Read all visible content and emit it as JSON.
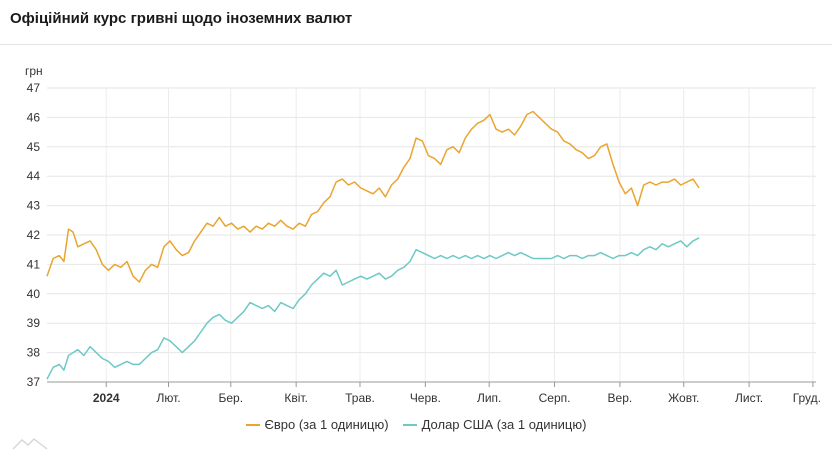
{
  "title": "Офіційний курс гривні щодо іноземних валют",
  "chart_data": {
    "type": "line",
    "title": "Офіційний курс гривні щодо іноземних валют",
    "ylabel": "грн",
    "xlabel": "",
    "ylim": [
      37,
      47
    ],
    "yticks": [
      37,
      38,
      39,
      40,
      41,
      42,
      43,
      44,
      45,
      46,
      47
    ],
    "grid": true,
    "legend": "bottom",
    "x_ticks": [
      {
        "label": "2024",
        "bold": true,
        "pos": 0.077
      },
      {
        "label": "Лют.",
        "bold": false,
        "pos": 0.158
      },
      {
        "label": "Бер.",
        "bold": false,
        "pos": 0.239
      },
      {
        "label": "Квіт.",
        "bold": false,
        "pos": 0.324
      },
      {
        "label": "Трав.",
        "bold": false,
        "pos": 0.407
      },
      {
        "label": "Черв.",
        "bold": false,
        "pos": 0.492
      },
      {
        "label": "Лип.",
        "bold": false,
        "pos": 0.575
      },
      {
        "label": "Серп.",
        "bold": false,
        "pos": 0.66
      },
      {
        "label": "Вер.",
        "bold": false,
        "pos": 0.745
      },
      {
        "label": "Жовт.",
        "bold": false,
        "pos": 0.828
      },
      {
        "label": "Лист.",
        "bold": false,
        "pos": 0.913
      },
      {
        "label": "Груд.",
        "bold": false,
        "pos": 0.996
      }
    ],
    "series": [
      {
        "name": "Євро (за 1 одиницю)",
        "color": "#e9a530",
        "points": [
          [
            0.0,
            40.6
          ],
          [
            0.008,
            41.2
          ],
          [
            0.016,
            41.3
          ],
          [
            0.022,
            41.1
          ],
          [
            0.028,
            42.2
          ],
          [
            0.034,
            42.1
          ],
          [
            0.04,
            41.6
          ],
          [
            0.048,
            41.7
          ],
          [
            0.056,
            41.8
          ],
          [
            0.064,
            41.5
          ],
          [
            0.072,
            41.0
          ],
          [
            0.08,
            40.8
          ],
          [
            0.088,
            41.0
          ],
          [
            0.096,
            40.9
          ],
          [
            0.104,
            41.1
          ],
          [
            0.112,
            40.6
          ],
          [
            0.12,
            40.4
          ],
          [
            0.128,
            40.8
          ],
          [
            0.136,
            41.0
          ],
          [
            0.144,
            40.9
          ],
          [
            0.152,
            41.6
          ],
          [
            0.16,
            41.8
          ],
          [
            0.168,
            41.5
          ],
          [
            0.176,
            41.3
          ],
          [
            0.184,
            41.4
          ],
          [
            0.192,
            41.8
          ],
          [
            0.2,
            42.1
          ],
          [
            0.208,
            42.4
          ],
          [
            0.216,
            42.3
          ],
          [
            0.224,
            42.6
          ],
          [
            0.232,
            42.3
          ],
          [
            0.24,
            42.4
          ],
          [
            0.248,
            42.2
          ],
          [
            0.256,
            42.3
          ],
          [
            0.264,
            42.1
          ],
          [
            0.272,
            42.3
          ],
          [
            0.28,
            42.2
          ],
          [
            0.288,
            42.4
          ],
          [
            0.296,
            42.3
          ],
          [
            0.304,
            42.5
          ],
          [
            0.312,
            42.3
          ],
          [
            0.32,
            42.2
          ],
          [
            0.328,
            42.4
          ],
          [
            0.336,
            42.3
          ],
          [
            0.344,
            42.7
          ],
          [
            0.352,
            42.8
          ],
          [
            0.36,
            43.1
          ],
          [
            0.368,
            43.3
          ],
          [
            0.376,
            43.8
          ],
          [
            0.384,
            43.9
          ],
          [
            0.392,
            43.7
          ],
          [
            0.4,
            43.8
          ],
          [
            0.408,
            43.6
          ],
          [
            0.416,
            43.5
          ],
          [
            0.424,
            43.4
          ],
          [
            0.432,
            43.6
          ],
          [
            0.44,
            43.3
          ],
          [
            0.448,
            43.7
          ],
          [
            0.456,
            43.9
          ],
          [
            0.464,
            44.3
          ],
          [
            0.472,
            44.6
          ],
          [
            0.48,
            45.3
          ],
          [
            0.488,
            45.2
          ],
          [
            0.496,
            44.7
          ],
          [
            0.504,
            44.6
          ],
          [
            0.512,
            44.4
          ],
          [
            0.52,
            44.9
          ],
          [
            0.528,
            45.0
          ],
          [
            0.536,
            44.8
          ],
          [
            0.544,
            45.3
          ],
          [
            0.552,
            45.6
          ],
          [
            0.56,
            45.8
          ],
          [
            0.568,
            45.9
          ],
          [
            0.576,
            46.1
          ],
          [
            0.584,
            45.6
          ],
          [
            0.592,
            45.5
          ],
          [
            0.6,
            45.6
          ],
          [
            0.608,
            45.4
          ],
          [
            0.616,
            45.7
          ],
          [
            0.624,
            46.1
          ],
          [
            0.632,
            46.2
          ],
          [
            0.64,
            46.0
          ],
          [
            0.648,
            45.8
          ],
          [
            0.656,
            45.6
          ],
          [
            0.664,
            45.5
          ],
          [
            0.672,
            45.2
          ],
          [
            0.68,
            45.1
          ],
          [
            0.688,
            44.9
          ],
          [
            0.696,
            44.8
          ],
          [
            0.704,
            44.6
          ],
          [
            0.712,
            44.7
          ],
          [
            0.72,
            45.0
          ],
          [
            0.728,
            45.1
          ],
          [
            0.736,
            44.4
          ],
          [
            0.744,
            43.8
          ],
          [
            0.752,
            43.4
          ],
          [
            0.76,
            43.6
          ],
          [
            0.768,
            43.0
          ],
          [
            0.776,
            43.7
          ],
          [
            0.784,
            43.8
          ],
          [
            0.792,
            43.7
          ],
          [
            0.8,
            43.8
          ],
          [
            0.808,
            43.8
          ],
          [
            0.816,
            43.9
          ],
          [
            0.824,
            43.7
          ],
          [
            0.832,
            43.8
          ],
          [
            0.84,
            43.9
          ],
          [
            0.848,
            43.6
          ]
        ]
      },
      {
        "name": "Долар США (за 1 одиницю)",
        "color": "#6cc9c6",
        "points": [
          [
            0.0,
            37.1
          ],
          [
            0.008,
            37.5
          ],
          [
            0.016,
            37.6
          ],
          [
            0.022,
            37.4
          ],
          [
            0.028,
            37.9
          ],
          [
            0.034,
            38.0
          ],
          [
            0.04,
            38.1
          ],
          [
            0.048,
            37.9
          ],
          [
            0.056,
            38.2
          ],
          [
            0.064,
            38.0
          ],
          [
            0.072,
            37.8
          ],
          [
            0.08,
            37.7
          ],
          [
            0.088,
            37.5
          ],
          [
            0.096,
            37.6
          ],
          [
            0.104,
            37.7
          ],
          [
            0.112,
            37.6
          ],
          [
            0.12,
            37.6
          ],
          [
            0.128,
            37.8
          ],
          [
            0.136,
            38.0
          ],
          [
            0.144,
            38.1
          ],
          [
            0.152,
            38.5
          ],
          [
            0.16,
            38.4
          ],
          [
            0.168,
            38.2
          ],
          [
            0.176,
            38.0
          ],
          [
            0.184,
            38.2
          ],
          [
            0.192,
            38.4
          ],
          [
            0.2,
            38.7
          ],
          [
            0.208,
            39.0
          ],
          [
            0.216,
            39.2
          ],
          [
            0.224,
            39.3
          ],
          [
            0.232,
            39.1
          ],
          [
            0.24,
            39.0
          ],
          [
            0.248,
            39.2
          ],
          [
            0.256,
            39.4
          ],
          [
            0.264,
            39.7
          ],
          [
            0.272,
            39.6
          ],
          [
            0.28,
            39.5
          ],
          [
            0.288,
            39.6
          ],
          [
            0.296,
            39.4
          ],
          [
            0.304,
            39.7
          ],
          [
            0.312,
            39.6
          ],
          [
            0.32,
            39.5
          ],
          [
            0.328,
            39.8
          ],
          [
            0.336,
            40.0
          ],
          [
            0.344,
            40.3
          ],
          [
            0.352,
            40.5
          ],
          [
            0.36,
            40.7
          ],
          [
            0.368,
            40.6
          ],
          [
            0.376,
            40.8
          ],
          [
            0.384,
            40.3
          ],
          [
            0.392,
            40.4
          ],
          [
            0.4,
            40.5
          ],
          [
            0.408,
            40.6
          ],
          [
            0.416,
            40.5
          ],
          [
            0.424,
            40.6
          ],
          [
            0.432,
            40.7
          ],
          [
            0.44,
            40.5
          ],
          [
            0.448,
            40.6
          ],
          [
            0.456,
            40.8
          ],
          [
            0.464,
            40.9
          ],
          [
            0.472,
            41.1
          ],
          [
            0.48,
            41.5
          ],
          [
            0.488,
            41.4
          ],
          [
            0.496,
            41.3
          ],
          [
            0.504,
            41.2
          ],
          [
            0.512,
            41.3
          ],
          [
            0.52,
            41.2
          ],
          [
            0.528,
            41.3
          ],
          [
            0.536,
            41.2
          ],
          [
            0.544,
            41.3
          ],
          [
            0.552,
            41.2
          ],
          [
            0.56,
            41.3
          ],
          [
            0.568,
            41.2
          ],
          [
            0.576,
            41.3
          ],
          [
            0.584,
            41.2
          ],
          [
            0.592,
            41.3
          ],
          [
            0.6,
            41.4
          ],
          [
            0.608,
            41.3
          ],
          [
            0.616,
            41.4
          ],
          [
            0.624,
            41.3
          ],
          [
            0.632,
            41.2
          ],
          [
            0.64,
            41.2
          ],
          [
            0.648,
            41.2
          ],
          [
            0.656,
            41.2
          ],
          [
            0.664,
            41.3
          ],
          [
            0.672,
            41.2
          ],
          [
            0.68,
            41.3
          ],
          [
            0.688,
            41.3
          ],
          [
            0.696,
            41.2
          ],
          [
            0.704,
            41.3
          ],
          [
            0.712,
            41.3
          ],
          [
            0.72,
            41.4
          ],
          [
            0.728,
            41.3
          ],
          [
            0.736,
            41.2
          ],
          [
            0.744,
            41.3
          ],
          [
            0.752,
            41.3
          ],
          [
            0.76,
            41.4
          ],
          [
            0.768,
            41.3
          ],
          [
            0.776,
            41.5
          ],
          [
            0.784,
            41.6
          ],
          [
            0.792,
            41.5
          ],
          [
            0.8,
            41.7
          ],
          [
            0.808,
            41.6
          ],
          [
            0.816,
            41.7
          ],
          [
            0.824,
            41.8
          ],
          [
            0.832,
            41.6
          ],
          [
            0.84,
            41.8
          ],
          [
            0.848,
            41.9
          ]
        ]
      }
    ]
  }
}
